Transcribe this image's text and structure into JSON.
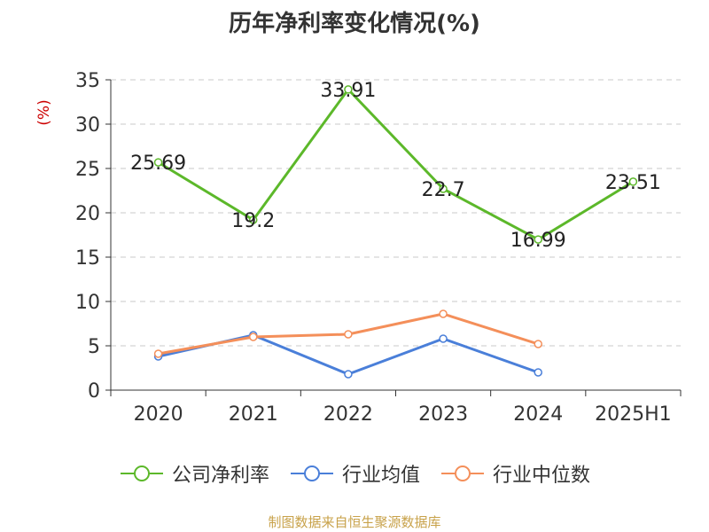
{
  "title": "历年净利率变化情况(%)",
  "footer": "制图数据来自恒生聚源数据库",
  "chart_data": {
    "type": "line",
    "title": "历年净利率变化情况(%)",
    "ylabel": "(%)",
    "categories": [
      "2020",
      "2021",
      "2022",
      "2023",
      "2024",
      "2025H1"
    ],
    "ylim": [
      0,
      35
    ],
    "yticks": [
      0,
      5,
      10,
      15,
      20,
      25,
      30,
      35
    ],
    "grid": true,
    "legend_position": "bottom",
    "series": [
      {
        "name": "公司净利率",
        "color": "#5cb82a",
        "values": [
          25.69,
          19.2,
          33.91,
          22.7,
          16.99,
          23.51
        ],
        "labels": [
          "25.69",
          "19.2",
          "33.91",
          "22.7",
          "16.99",
          "23.51"
        ],
        "gap_before_last": true
      },
      {
        "name": "行业均值",
        "color": "#4a7fd9",
        "values": [
          3.8,
          6.2,
          1.8,
          5.8,
          2.0,
          null
        ]
      },
      {
        "name": "行业中位数",
        "color": "#f48f5a",
        "values": [
          4.1,
          6.0,
          6.3,
          8.6,
          5.2,
          null
        ]
      }
    ]
  }
}
